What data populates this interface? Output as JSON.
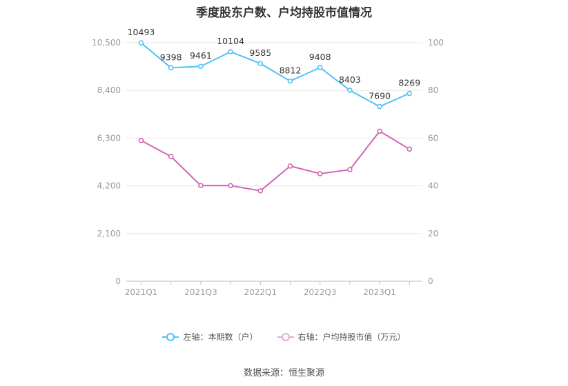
{
  "title": "季度股东户数、户均持股市值情况",
  "source": "数据来源：恒生聚源",
  "colors": {
    "left_series": "#4fc3f7",
    "right_series": "#d464b4",
    "grid": "#e6e6e6",
    "axis": "#999999"
  },
  "legend": [
    {
      "label": "左轴：本期数（户）"
    },
    {
      "label": "右轴：户均持股市值（万元）"
    }
  ],
  "chart_data": {
    "type": "line",
    "title": "季度股东户数、户均持股市值情况",
    "x": [
      "2021Q1",
      "2021Q2",
      "2021Q3",
      "2021Q4",
      "2022Q1",
      "2022Q2",
      "2022Q3",
      "2022Q4",
      "2023Q1",
      "2023Q2"
    ],
    "x_tick_labels": [
      "2021Q1",
      "2021Q3",
      "2022Q1",
      "2022Q3",
      "2023Q1"
    ],
    "left_axis": {
      "ticks": [
        "0",
        "2,100",
        "4,200",
        "6,300",
        "8,400",
        "10,500"
      ],
      "ylim": [
        0,
        10500
      ]
    },
    "right_axis": {
      "ticks": [
        "0",
        "20",
        "40",
        "60",
        "80",
        "100"
      ],
      "ylim": [
        0,
        100
      ]
    },
    "series": [
      {
        "name": "左轴：本期数（户）",
        "axis": "left",
        "values": [
          10493,
          9398,
          9461,
          10104,
          9585,
          8812,
          9408,
          8403,
          7690,
          8269
        ],
        "labels": [
          "10493",
          "9398",
          "9461",
          "10104",
          "9585",
          "8812",
          "9408",
          "8403",
          "7690",
          "8269"
        ]
      },
      {
        "name": "右轴：户均持股市值（万元）",
        "axis": "right",
        "values": [
          59.0,
          52.3,
          40.1,
          40.1,
          37.9,
          48.3,
          45.1,
          46.8,
          62.9,
          55.4
        ]
      }
    ],
    "grid": true,
    "legend_position": "bottom"
  }
}
